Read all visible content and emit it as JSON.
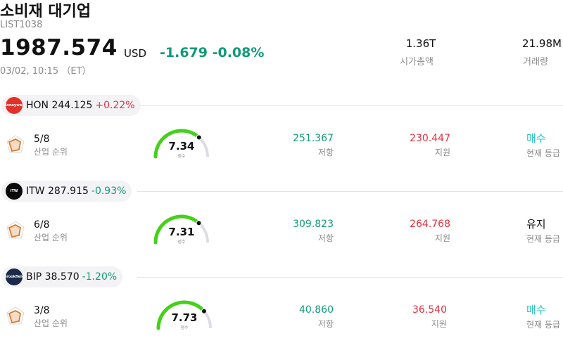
{
  "header": {
    "title": "소비재 대기업",
    "symbol": "LIST1038",
    "price": "1987.574",
    "currency": "USD",
    "change": "-1.679 -0.08%",
    "datetime": "03/02, 10:15 （ET）"
  },
  "stats": [
    {
      "value": "1.36T",
      "label": "시가총액"
    },
    {
      "value": "21.98M",
      "label": "거래량"
    }
  ],
  "colors": {
    "up": "#e0313f",
    "down": "#119a79",
    "buy": "#2cc1c0",
    "gauge": "#44d11a"
  },
  "rows": [
    {
      "ticker": "HON",
      "price": "244.125",
      "change": "+0.22%",
      "direction": "up",
      "logo_color": "#e5302a",
      "logo_text": "Honeywell",
      "rank": "5/8",
      "rank_label": "산업 순위",
      "score": "7.34",
      "score_label": "점수",
      "score_value": 7.34,
      "resistance": "251.367",
      "resistance_label": "저항",
      "support": "230.447",
      "support_label": "지원",
      "signal": "매수",
      "signal_type": "buy",
      "signal_label": "현재 등급"
    },
    {
      "ticker": "ITW",
      "price": "287.915",
      "change": "-0.93%",
      "direction": "down",
      "logo_color": "#0a0a0a",
      "logo_text": "ITW",
      "rank": "6/8",
      "rank_label": "산업 순위",
      "score": "7.31",
      "score_label": "점수",
      "score_value": 7.31,
      "resistance": "309.823",
      "resistance_label": "저항",
      "support": "264.768",
      "support_label": "지원",
      "signal": "유지",
      "signal_type": "hold",
      "signal_label": "현재 등급"
    },
    {
      "ticker": "BIP",
      "price": "38.570",
      "change": "-1.20%",
      "direction": "down",
      "logo_color": "#1b2a4a",
      "logo_text": "Brookfield",
      "rank": "3/8",
      "rank_label": "산업 순위",
      "score": "7.73",
      "score_label": "점수",
      "score_value": 7.73,
      "resistance": "40.860",
      "resistance_label": "저항",
      "support": "36.540",
      "support_label": "지원",
      "signal": "매수",
      "signal_type": "buy",
      "signal_label": "현재 등급"
    }
  ]
}
